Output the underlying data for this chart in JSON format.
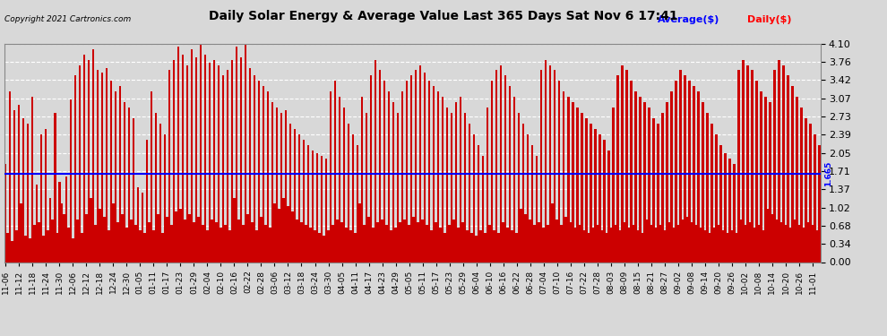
{
  "title": "Daily Solar Energy & Average Value Last 365 Days Sat Nov 6 17:41",
  "copyright": "Copyright 2021 Cartronics.com",
  "legend_average": "Average($)",
  "legend_daily": "Daily($)",
  "average_value": 1.665,
  "ylim": [
    0.0,
    4.1
  ],
  "yticks": [
    0.0,
    0.34,
    0.68,
    1.02,
    1.37,
    1.71,
    2.05,
    2.39,
    2.73,
    3.07,
    3.42,
    3.76,
    4.1
  ],
  "bar_color": "#cc0000",
  "avg_line_color": "blue",
  "background_color": "#d8d8d8",
  "grid_color": "#ffffff",
  "x_labels": [
    "11-06",
    "11-12",
    "11-18",
    "11-24",
    "11-30",
    "12-06",
    "12-12",
    "12-18",
    "12-24",
    "12-30",
    "01-05",
    "01-11",
    "01-17",
    "01-23",
    "01-29",
    "02-04",
    "02-10",
    "02-16",
    "02-22",
    "02-28",
    "03-06",
    "03-12",
    "03-18",
    "03-24",
    "03-30",
    "04-05",
    "04-11",
    "04-17",
    "04-23",
    "04-29",
    "05-05",
    "05-11",
    "05-17",
    "05-23",
    "05-29",
    "06-04",
    "06-10",
    "06-16",
    "06-22",
    "06-28",
    "07-04",
    "07-10",
    "07-16",
    "07-22",
    "07-28",
    "08-03",
    "08-09",
    "08-15",
    "08-21",
    "08-27",
    "09-02",
    "09-08",
    "09-14",
    "09-20",
    "09-26",
    "10-02",
    "10-08",
    "10-14",
    "10-20",
    "10-26",
    "11-01"
  ],
  "values": [
    1.85,
    0.55,
    3.2,
    0.4,
    2.85,
    0.6,
    2.95,
    1.1,
    2.7,
    0.5,
    2.6,
    0.45,
    3.1,
    0.7,
    1.45,
    0.75,
    2.4,
    0.5,
    2.5,
    0.6,
    1.2,
    0.8,
    2.8,
    0.55,
    1.5,
    1.1,
    0.9,
    1.6,
    0.65,
    3.05,
    0.45,
    3.5,
    0.8,
    3.7,
    0.55,
    3.9,
    0.9,
    3.8,
    1.2,
    4.0,
    0.7,
    3.6,
    1.0,
    3.55,
    0.85,
    3.65,
    0.6,
    3.4,
    1.1,
    3.2,
    0.75,
    3.3,
    0.9,
    3.0,
    0.65,
    2.9,
    0.8,
    2.7,
    0.7,
    1.4,
    0.6,
    1.3,
    0.55,
    2.3,
    0.75,
    3.2,
    0.6,
    2.8,
    0.9,
    2.6,
    0.55,
    2.4,
    0.85,
    3.6,
    0.7,
    3.8,
    0.95,
    4.05,
    1.0,
    3.9,
    0.8,
    3.7,
    0.9,
    4.0,
    0.75,
    3.85,
    0.85,
    4.1,
    0.7,
    3.9,
    0.6,
    3.75,
    0.8,
    3.8,
    0.75,
    3.7,
    0.65,
    3.5,
    0.7,
    3.6,
    0.6,
    3.8,
    1.2,
    4.05,
    0.8,
    3.85,
    0.7,
    4.1,
    0.9,
    3.65,
    0.75,
    3.5,
    0.6,
    3.4,
    0.85,
    3.3,
    0.7,
    3.2,
    0.65,
    3.0,
    1.1,
    2.9,
    1.0,
    2.8,
    1.2,
    2.85,
    1.05,
    2.6,
    0.95,
    2.5,
    0.8,
    2.4,
    0.75,
    2.3,
    0.7,
    2.2,
    0.65,
    2.1,
    0.6,
    2.05,
    0.55,
    2.0,
    0.5,
    1.95,
    0.6,
    3.2,
    0.7,
    3.4,
    0.8,
    3.1,
    0.75,
    2.9,
    0.65,
    2.6,
    0.6,
    2.4,
    0.55,
    2.2,
    1.1,
    3.1,
    0.7,
    2.8,
    0.85,
    3.5,
    0.65,
    3.8,
    0.75,
    3.6,
    0.8,
    3.4,
    0.7,
    3.2,
    0.6,
    3.0,
    0.65,
    2.8,
    0.75,
    3.2,
    0.8,
    3.4,
    0.7,
    3.5,
    0.85,
    3.6,
    0.75,
    3.7,
    0.8,
    3.55,
    0.7,
    3.4,
    0.6,
    3.3,
    0.75,
    3.2,
    0.65,
    3.1,
    0.55,
    2.9,
    0.7,
    2.8,
    0.8,
    3.0,
    0.65,
    3.1,
    0.75,
    2.8,
    0.6,
    2.6,
    0.55,
    2.4,
    0.5,
    2.2,
    0.6,
    2.0,
    0.55,
    2.9,
    0.7,
    3.4,
    0.6,
    3.6,
    0.55,
    3.7,
    0.75,
    3.5,
    0.65,
    3.3,
    0.6,
    3.1,
    0.55,
    2.8,
    1.0,
    2.6,
    0.9,
    2.4,
    0.8,
    2.2,
    0.7,
    2.0,
    0.75,
    3.6,
    0.65,
    3.8,
    0.7,
    3.7,
    1.1,
    3.6,
    0.8,
    3.4,
    0.7,
    3.2,
    0.85,
    3.1,
    0.75,
    3.0,
    0.65,
    2.9,
    0.7,
    2.8,
    0.6,
    2.7,
    0.55,
    2.6,
    0.65,
    2.5,
    0.7,
    2.4,
    0.6,
    2.3,
    0.55,
    2.1,
    0.65,
    2.9,
    0.7,
    3.5,
    0.6,
    3.7,
    0.75,
    3.6,
    0.65,
    3.4,
    0.7,
    3.2,
    0.6,
    3.1,
    0.55,
    3.0,
    0.8,
    2.9,
    0.7,
    2.7,
    0.65,
    2.6,
    0.7,
    2.8,
    0.6,
    3.0,
    0.75,
    3.2,
    0.65,
    3.4,
    0.7,
    3.6,
    0.8,
    3.5,
    0.85,
    3.4,
    0.75,
    3.3,
    0.7,
    3.2,
    0.65,
    3.0,
    0.6,
    2.8,
    0.55,
    2.6,
    0.65,
    2.4,
    0.7,
    2.2,
    0.6,
    2.05,
    0.55,
    1.95,
    0.6,
    1.85,
    0.55,
    3.6,
    0.8,
    3.8,
    0.7,
    3.7,
    0.75,
    3.6,
    0.65,
    3.4,
    0.7,
    3.2,
    0.6,
    3.1,
    1.0,
    3.0,
    0.9,
    3.6,
    0.8,
    3.8,
    0.75,
    3.7,
    0.7,
    3.5,
    0.65,
    3.3,
    0.8,
    3.1,
    0.7,
    2.9,
    0.65,
    2.7,
    0.75,
    2.6,
    0.7,
    2.4,
    0.6,
    2.2
  ]
}
